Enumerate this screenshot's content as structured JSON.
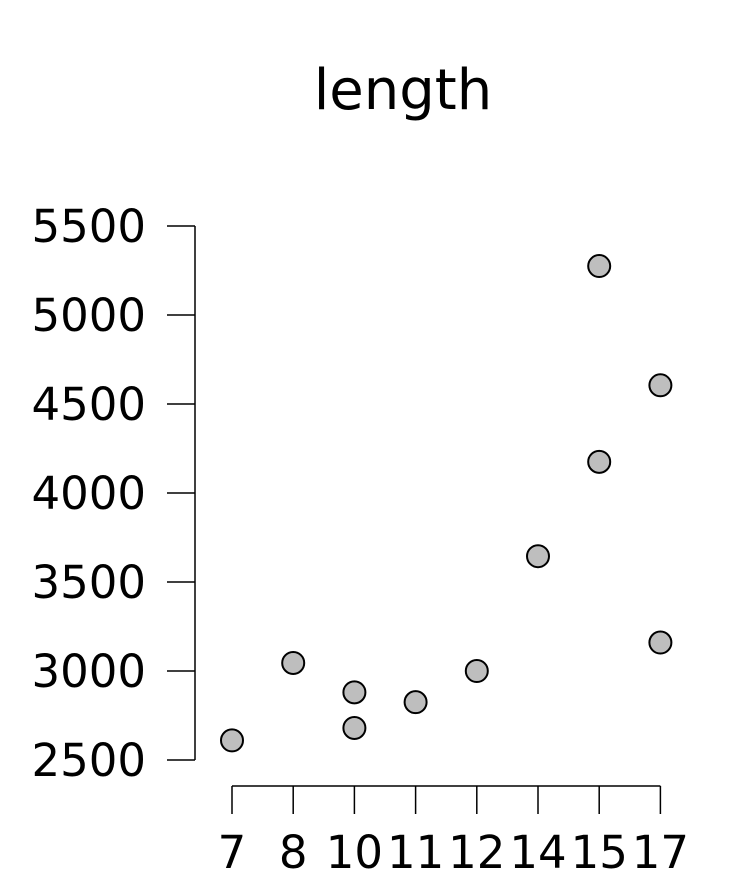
{
  "chart_data": {
    "type": "scatter",
    "title": "length",
    "xlabel": "",
    "ylabel": "",
    "x_categories": [
      "7",
      "8",
      "10",
      "11",
      "12",
      "14",
      "15",
      "17"
    ],
    "yticks": [
      2500,
      3000,
      3500,
      4000,
      4500,
      5000,
      5500
    ],
    "ylim": [
      2500,
      5500
    ],
    "grid": false,
    "points": [
      {
        "x": "7",
        "y": 2610
      },
      {
        "x": "8",
        "y": 3045
      },
      {
        "x": "10",
        "y": 2880
      },
      {
        "x": "10",
        "y": 2680
      },
      {
        "x": "11",
        "y": 2825
      },
      {
        "x": "12",
        "y": 3000
      },
      {
        "x": "14",
        "y": 3645
      },
      {
        "x": "15",
        "y": 5275
      },
      {
        "x": "15",
        "y": 4175
      },
      {
        "x": "17",
        "y": 4605
      },
      {
        "x": "17",
        "y": 3160
      }
    ],
    "colors": {
      "point_fill": "#bebebe",
      "point_stroke": "#000000"
    }
  }
}
